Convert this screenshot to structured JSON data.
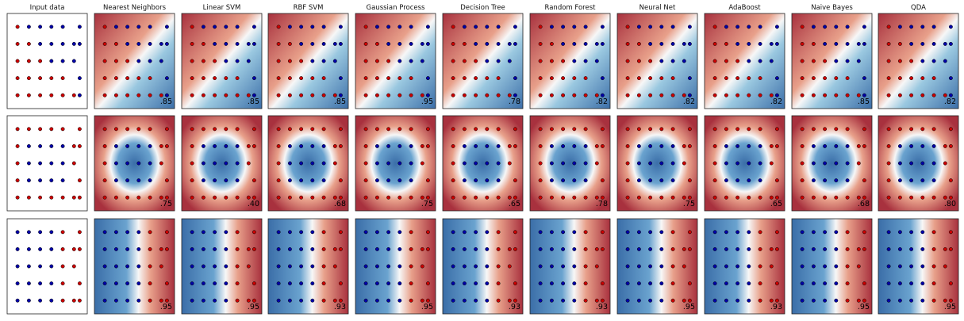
{
  "chart_data": {
    "type": "scatter",
    "layout": "grid of 3 dataset rows x 11 panels",
    "column_titles": [
      "Input data",
      "Nearest Neighbors",
      "Linear SVM",
      "RBF SVM",
      "Gaussian Process",
      "Decision Tree",
      "Random Forest",
      "Neural Net",
      "AdaBoost",
      "Naive Bayes",
      "QDA"
    ],
    "grid": false,
    "axis_ticks": false,
    "colors": {
      "class_0": "#cc0000",
      "class_1": "#0000a8",
      "cmap_red": "#a8313e",
      "cmap_light": "#f7f7f7",
      "cmap_blue": "#3b6ea8"
    },
    "rows": [
      {
        "dataset": "moons",
        "background_pattern": "diagonal",
        "classifiers": [
          {
            "name": "Nearest Neighbors",
            "score": ".85"
          },
          {
            "name": "Linear SVM",
            "score": ".85"
          },
          {
            "name": "RBF SVM",
            "score": ".85"
          },
          {
            "name": "Gaussian Process",
            "score": ".95"
          },
          {
            "name": "Decision Tree",
            "score": ".78"
          },
          {
            "name": "Random Forest",
            "score": ".82"
          },
          {
            "name": "Neural Net",
            "score": ".82"
          },
          {
            "name": "AdaBoost",
            "score": ".82"
          },
          {
            "name": "Naive Bayes",
            "score": ".85"
          },
          {
            "name": "QDA",
            "score": ".82"
          }
        ]
      },
      {
        "dataset": "circles",
        "background_pattern": "radial",
        "classifiers": [
          {
            "name": "Nearest Neighbors",
            "score": ".75"
          },
          {
            "name": "Linear SVM",
            "score": ".40"
          },
          {
            "name": "RBF SVM",
            "score": ".68"
          },
          {
            "name": "Gaussian Process",
            "score": ".75"
          },
          {
            "name": "Decision Tree",
            "score": ".65"
          },
          {
            "name": "Random Forest",
            "score": ".78"
          },
          {
            "name": "Neural Net",
            "score": ".75"
          },
          {
            "name": "AdaBoost",
            "score": ".65"
          },
          {
            "name": "Naive Bayes",
            "score": ".68"
          },
          {
            "name": "QDA",
            "score": ".80"
          }
        ]
      },
      {
        "dataset": "linearly separable",
        "background_pattern": "vertical",
        "classifiers": [
          {
            "name": "Nearest Neighbors",
            "score": ".95"
          },
          {
            "name": "Linear SVM",
            "score": ".95"
          },
          {
            "name": "RBF SVM",
            "score": ".93"
          },
          {
            "name": "Gaussian Process",
            "score": ".95"
          },
          {
            "name": "Decision Tree",
            "score": ".93"
          },
          {
            "name": "Random Forest",
            "score": ".93"
          },
          {
            "name": "Neural Net",
            "score": ".95"
          },
          {
            "name": "AdaBoost",
            "score": ".93"
          },
          {
            "name": "Naive Bayes",
            "score": ".95"
          },
          {
            "name": "QDA",
            "score": ".95"
          }
        ]
      }
    ]
  }
}
